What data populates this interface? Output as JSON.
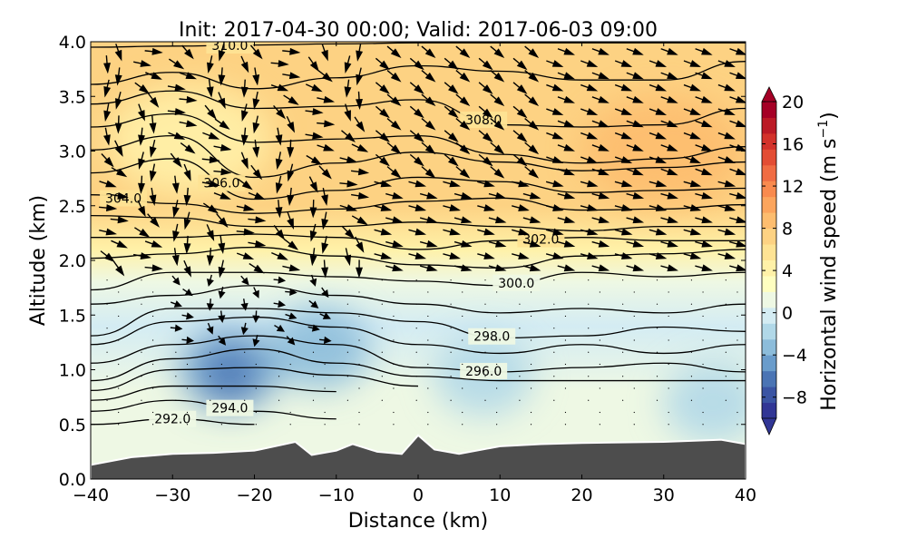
{
  "chart_data": {
    "type": "heatmap",
    "subtype": "filled contour cross-section with isentropes and wind vectors",
    "title": "Init: 2017-04-30 00:00; Valid: 2017-06-03 09:00",
    "xlabel": "Distance (km)",
    "ylabel": "Altitude (km)",
    "xlim": [
      -40,
      40
    ],
    "ylim": [
      0,
      4
    ],
    "xticks": [
      "−40",
      "−30",
      "−20",
      "−10",
      "0",
      "10",
      "20",
      "30",
      "40"
    ],
    "yticks": [
      "0.0",
      "0.5",
      "1.0",
      "1.5",
      "2.0",
      "2.5",
      "3.0",
      "3.5",
      "4.0"
    ],
    "colorbar": {
      "label": "Horizontal wind speed (m s",
      "label_exp": "−1",
      "label_close": ")",
      "range": [
        -10,
        20
      ],
      "ticks": [
        "20",
        "16",
        "12",
        "8",
        "4",
        "0",
        "−4",
        "−8"
      ],
      "tick_values": [
        20,
        16,
        12,
        8,
        4,
        0,
        -4,
        -8
      ],
      "colors": [
        "#313695",
        "#3a54a3",
        "#4a74b4",
        "#6a9ccb",
        "#8cbcda",
        "#b1d8e8",
        "#d4ecf3",
        "#eef8e4",
        "#fefec0",
        "#fff1a8",
        "#fee394",
        "#fdd283",
        "#fdbd6f",
        "#fca55d",
        "#f98a4e",
        "#f06c43",
        "#e34d34",
        "#d3322b",
        "#bb1a26",
        "#a50026"
      ]
    },
    "wind_speed_background": [
      {
        "alt": 4.0,
        "speed": 7.5
      },
      {
        "alt": 3.0,
        "speed": 6.5
      },
      {
        "alt": 2.5,
        "speed": 7
      },
      {
        "alt": 2.1,
        "speed": 4
      },
      {
        "alt": 1.8,
        "speed": 1.5
      },
      {
        "alt": 1.4,
        "speed": 0
      },
      {
        "alt": 0.8,
        "speed": 0.5
      },
      {
        "alt": 0.3,
        "speed": 0.5
      }
    ],
    "wind_speed_anomalies": [
      {
        "x": -23,
        "alt": 1.0,
        "speed": -5
      },
      {
        "x": -12,
        "alt": 1.2,
        "speed": -3
      },
      {
        "x": 8,
        "alt": 0.95,
        "speed": -2
      },
      {
        "x": 36,
        "alt": 0.7,
        "speed": -1.5
      },
      {
        "x": -28,
        "alt": 3.1,
        "speed": 4.5
      },
      {
        "x": 30,
        "alt": 3.0,
        "speed": 8.5
      }
    ],
    "isentropes_x": [
      -40,
      -30,
      -20,
      -10,
      0,
      10,
      20,
      30,
      40
    ],
    "isentropes": [
      {
        "label": "310.0",
        "label_x": -23,
        "alt": [
          3.95,
          3.96,
          3.97,
          3.98,
          3.99,
          3.99,
          3.99,
          3.99,
          3.99
        ]
      },
      {
        "label": "",
        "alt": [
          3.61,
          3.72,
          3.57,
          3.67,
          3.78,
          3.73,
          3.65,
          3.65,
          3.82
        ]
      },
      {
        "label": "308.0",
        "label_x": 8,
        "alt": [
          3.43,
          3.55,
          3.39,
          3.41,
          3.47,
          3.24,
          3.22,
          3.24,
          3.39
        ]
      },
      {
        "label": "",
        "alt": [
          3.22,
          3.34,
          3.08,
          3.11,
          3.14,
          2.97,
          2.89,
          2.93,
          3.04
        ]
      },
      {
        "label": "",
        "alt": [
          3.01,
          3.14,
          2.76,
          2.89,
          2.99,
          2.9,
          2.82,
          2.85,
          2.9
        ]
      },
      {
        "label": "306.0",
        "label_x": -24,
        "alt": [
          2.8,
          2.93,
          2.56,
          2.64,
          2.76,
          2.72,
          2.62,
          2.64,
          2.66
        ]
      },
      {
        "label": "304.0",
        "label_x": -36,
        "alt": [
          2.6,
          2.52,
          2.43,
          2.47,
          2.54,
          2.57,
          2.46,
          2.47,
          2.51
        ]
      },
      {
        "label": "",
        "alt": [
          2.41,
          2.39,
          2.31,
          2.31,
          2.35,
          2.31,
          2.27,
          2.31,
          2.31
        ]
      },
      {
        "label": "302.0",
        "label_x": 15,
        "alt": [
          2.21,
          2.21,
          2.24,
          2.21,
          2.1,
          2.18,
          2.21,
          2.18,
          2.18
        ]
      },
      {
        "label": "",
        "alt": [
          2.02,
          2.06,
          2.12,
          2.04,
          1.96,
          1.93,
          2.04,
          2.06,
          2.1
        ]
      },
      {
        "label": "300.0",
        "label_x": 12,
        "alt": [
          1.73,
          1.89,
          1.89,
          1.85,
          1.81,
          1.77,
          1.89,
          1.85,
          1.89
        ]
      },
      {
        "label": "",
        "alt": [
          1.6,
          1.68,
          1.77,
          1.68,
          1.6,
          1.52,
          1.56,
          1.52,
          1.6
        ]
      },
      {
        "label": "298.0",
        "label_x": 9,
        "alt": [
          1.31,
          1.56,
          1.56,
          1.52,
          1.44,
          1.29,
          1.31,
          1.39,
          1.35
        ]
      },
      {
        "label": "",
        "alt": [
          1.23,
          1.44,
          1.48,
          1.39,
          1.23,
          1.15,
          1.23,
          1.15,
          1.23
        ]
      },
      {
        "label": "296.0",
        "label_x": 8,
        "alt": [
          1.06,
          1.23,
          1.31,
          1.23,
          1.02,
          0.98,
          1.02,
          1.06,
          0.98
        ]
      },
      {
        "label": "",
        "alt": [
          0.9,
          1.1,
          1.19,
          1.06,
          0.94,
          0.9,
          0.9,
          0.9,
          0.9
        ]
      },
      {
        "label": "",
        "alt": [
          0.81,
          1.0,
          1.02,
          0.95,
          0.85,
          null,
          null,
          null,
          null
        ]
      },
      {
        "label": "",
        "alt": [
          0.72,
          0.85,
          0.85,
          0.8,
          null,
          null,
          null,
          null,
          null
        ]
      },
      {
        "label": "294.0",
        "label_x": -23,
        "alt": [
          0.62,
          0.72,
          0.62,
          0.55,
          null,
          null,
          null,
          null,
          null
        ]
      },
      {
        "label": "292.0",
        "label_x": -30,
        "alt": [
          0.5,
          0.55,
          0.5,
          null,
          null,
          null,
          null,
          null,
          null
        ]
      }
    ],
    "terrain": {
      "x": [
        -40,
        -35,
        -30,
        -25,
        -20,
        -15,
        -13,
        -10,
        -8,
        -5,
        -2,
        0,
        2,
        5,
        10,
        15,
        20,
        30,
        37,
        40
      ],
      "alt": [
        0.13,
        0.2,
        0.23,
        0.24,
        0.26,
        0.34,
        0.22,
        0.26,
        0.32,
        0.25,
        0.23,
        0.4,
        0.27,
        0.23,
        0.3,
        0.32,
        0.33,
        0.34,
        0.36,
        0.32
      ]
    }
  }
}
